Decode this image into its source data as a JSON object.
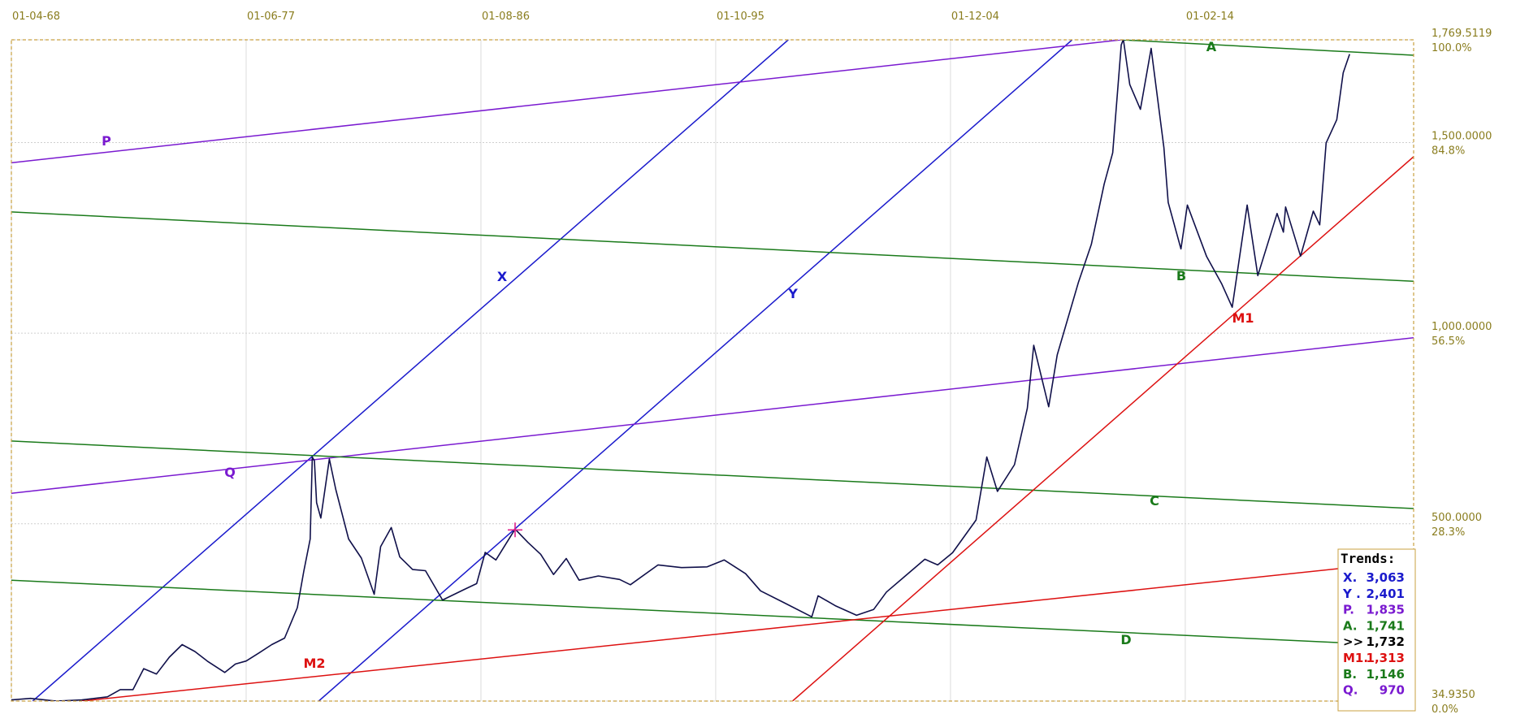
{
  "chart_data": {
    "type": "line",
    "xlim": [
      "1968-04",
      "2023-01"
    ],
    "xticks": [
      {
        "value": "1968-04",
        "label": "01-04-68"
      },
      {
        "value": "1977-06",
        "label": "01-06-77"
      },
      {
        "value": "1986-08",
        "label": "01-08-86"
      },
      {
        "value": "1995-10",
        "label": "01-10-95"
      },
      {
        "value": "2004-12",
        "label": "01-12-04"
      },
      {
        "value": "2014-02",
        "label": "01-02-14"
      }
    ],
    "ylim": [
      34.935,
      1769.5119
    ],
    "yticks": [
      {
        "value": 1769.5119,
        "label": "1,769.5119"
      },
      {
        "value": 1500,
        "label": "1,500.0000"
      },
      {
        "value": 1000,
        "label": "1,000.0000"
      },
      {
        "value": 500,
        "label": "500.0000"
      },
      {
        "value": 34.935,
        "label": "34.9350"
      }
    ],
    "ytick_percent": [
      "100.0%",
      "84.8%",
      "56.5%",
      "28.3%",
      "0.0%"
    ],
    "grid": true,
    "x": [
      "1968-04",
      "1969-01",
      "1970-01",
      "1971-01",
      "1972-01",
      "1972-07",
      "1973-01",
      "1973-06",
      "1973-12",
      "1974-06",
      "1974-12",
      "1975-06",
      "1975-12",
      "1976-08",
      "1977-01",
      "1977-06",
      "1977-12",
      "1978-06",
      "1978-12",
      "1979-06",
      "1979-09",
      "1979-12",
      "1980-01",
      "1980-02",
      "1980-03",
      "1980-05",
      "1980-09",
      "1980-12",
      "1981-06",
      "1981-12",
      "1982-06",
      "1982-09",
      "1983-02",
      "1983-06",
      "1983-12",
      "1984-06",
      "1985-02",
      "1985-12",
      "1986-06",
      "1986-10",
      "1987-03",
      "1987-12",
      "1988-06",
      "1988-12",
      "1989-06",
      "1989-12",
      "1990-06",
      "1991-03",
      "1992-01",
      "1992-06",
      "1993-07",
      "1994-06",
      "1995-06",
      "1996-02",
      "1996-12",
      "1997-07",
      "1998-06",
      "1999-07",
      "1999-10",
      "2000-06",
      "2001-04",
      "2001-12",
      "2002-06",
      "2003-02",
      "2003-12",
      "2004-06",
      "2005-01",
      "2005-12",
      "2006-05",
      "2006-10",
      "2007-06",
      "2007-12",
      "2008-03",
      "2008-10",
      "2009-02",
      "2009-12",
      "2010-06",
      "2010-12",
      "2011-04",
      "2011-08",
      "2011-09",
      "2011-12",
      "2012-05",
      "2012-10",
      "2013-04",
      "2013-06",
      "2013-12",
      "2014-03",
      "2014-12",
      "2015-07",
      "2015-12",
      "2016-07",
      "2016-12",
      "2017-09",
      "2017-12",
      "2018-01",
      "2018-08",
      "2019-02",
      "2019-05",
      "2019-08",
      "2020-01",
      "2020-04",
      "2020-07"
    ],
    "series": [
      {
        "color": "#10104a",
        "values": [
          38,
          42,
          35,
          38,
          46,
          65,
          65,
          120,
          106,
          150,
          183,
          165,
          139,
          110,
          132,
          140,
          161,
          183,
          200,
          280,
          375,
          460,
          675,
          665,
          555,
          515,
          670,
          590,
          460,
          410,
          315,
          440,
          490,
          413,
          380,
          377,
          300,
          327,
          343,
          425,
          405,
          486,
          451,
          420,
          367,
          409,
          352,
          363,
          354,
          340,
          392,
          385,
          387,
          405,
          369,
          324,
          293,
          256,
          311,
          285,
          260,
          275,
          321,
          359,
          407,
          392,
          424,
          510,
          675,
          585,
          655,
          803,
          968,
          807,
          943,
          1134,
          1233,
          1391,
          1473,
          1756,
          1771,
          1652,
          1587,
          1747,
          1487,
          1343,
          1221,
          1336,
          1201,
          1130,
          1068,
          1336,
          1151,
          1314,
          1265,
          1331,
          1202,
          1320,
          1284,
          1499,
          1560,
          1683,
          1732
        ]
      }
    ],
    "trendlines": [
      {
        "name": "X",
        "color": "#1a1acc",
        "x": [
          "1969-02",
          "1998-08"
        ],
        "y": [
          34.935,
          1769.5119
        ]
      },
      {
        "name": "Y",
        "color": "#1a1acc",
        "x": [
          "1980-04",
          "2009-09"
        ],
        "y": [
          34.935,
          1769.5119
        ]
      },
      {
        "name": "P",
        "color": "#7a1ad0",
        "x": [
          "1968-04",
          "2011-08"
        ],
        "y": [
          1447,
          1769.5119
        ]
      },
      {
        "name": "Q",
        "color": "#7a1ad0",
        "x": [
          "1968-04",
          "2023-01"
        ],
        "y": [
          580,
          988
        ]
      },
      {
        "name": "A",
        "color": "#1a7a1a",
        "x": [
          "2011-08",
          "2023-01"
        ],
        "y": [
          1769.5119,
          1729
        ]
      },
      {
        "name": "B",
        "color": "#1a7a1a",
        "x": [
          "1968-04",
          "2023-01"
        ],
        "y": [
          1318,
          1136
        ]
      },
      {
        "name": "C",
        "color": "#1a7a1a",
        "x": [
          "1968-04",
          "2023-01"
        ],
        "y": [
          717,
          540
        ]
      },
      {
        "name": "D",
        "color": "#1a7a1a",
        "x": [
          "1968-04",
          "2023-01"
        ],
        "y": [
          352,
          179
        ]
      },
      {
        "name": "M1",
        "color": "#dd1111",
        "x": [
          "1998-10",
          "2023-01"
        ],
        "y": [
          34.935,
          1463
        ]
      },
      {
        "name": "M2",
        "color": "#dd1111",
        "x": [
          "1971-01",
          "2023-01"
        ],
        "y": [
          34.935,
          403
        ]
      }
    ],
    "marker": {
      "x": "1987-12",
      "y": 484,
      "color": "#e0208a"
    },
    "legend": {
      "title": "Trends:",
      "entries": [
        {
          "label": "X.",
          "text": "3,063",
          "color": "#1a1acc"
        },
        {
          "label": "Y .",
          "text": "2,401",
          "color": "#1a1acc"
        },
        {
          "label": "P.",
          "text": "1,835",
          "color": "#7a1ad0"
        },
        {
          "label": "A.",
          "text": "1,741",
          "color": "#1a7a1a"
        },
        {
          "label": ">>",
          "text": "1,732",
          "color": "#000000"
        },
        {
          "label": "M1.",
          "text": "1,313",
          "color": "#dd1111"
        },
        {
          "label": "B.",
          "text": "1,146",
          "color": "#1a7a1a"
        },
        {
          "label": "Q.",
          "text": "970",
          "color": "#7a1ad0"
        }
      ]
    }
  }
}
